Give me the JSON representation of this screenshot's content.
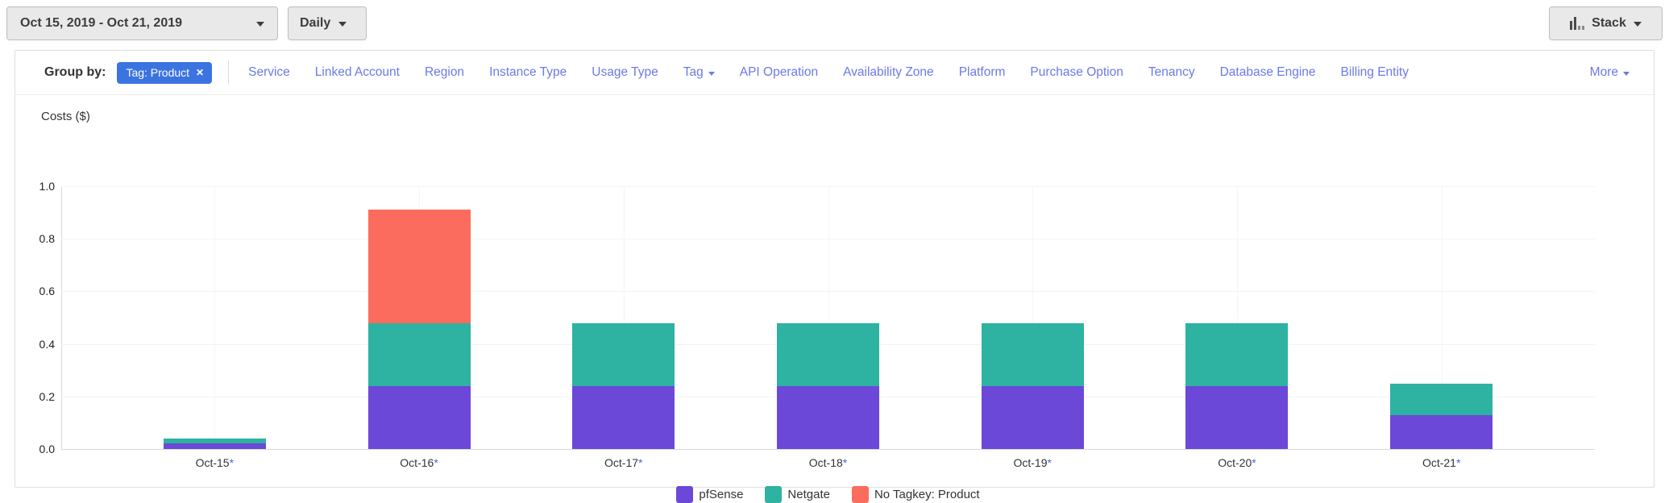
{
  "toolbar": {
    "date_range": "Oct 15, 2019 - Oct 21, 2019",
    "granularity": "Daily",
    "chart_style": "Stack"
  },
  "group_by": {
    "label": "Group by:",
    "active_filter": "Tag: Product",
    "links": [
      "Service",
      "Linked Account",
      "Region",
      "Instance Type",
      "Usage Type",
      "Tag",
      "API Operation",
      "Availability Zone",
      "Platform",
      "Purchase Option",
      "Tenancy",
      "Database Engine",
      "Billing Entity"
    ],
    "links_with_caret": [
      "Tag"
    ],
    "more_label": "More"
  },
  "chart_data": {
    "type": "bar",
    "stacked": true,
    "title": "Costs ($)",
    "categories": [
      "Oct-15*",
      "Oct-16*",
      "Oct-17*",
      "Oct-18*",
      "Oct-19*",
      "Oct-20*",
      "Oct-21*"
    ],
    "series": [
      {
        "name": "pfSense",
        "color": "#6b48d7",
        "values": [
          0.02,
          0.24,
          0.24,
          0.24,
          0.24,
          0.24,
          0.13
        ]
      },
      {
        "name": "Netgate",
        "color": "#2eb2a2",
        "values": [
          0.02,
          0.24,
          0.24,
          0.24,
          0.24,
          0.24,
          0.12
        ]
      },
      {
        "name": "No Tagkey: Product",
        "color": "#fb6c5e",
        "values": [
          0,
          0.43,
          0,
          0,
          0,
          0,
          0
        ]
      }
    ],
    "ylim": [
      0,
      1.0
    ],
    "yticks": [
      0.0,
      0.2,
      0.4,
      0.6,
      0.8,
      1.0
    ],
    "ytick_labels": [
      "0.0",
      "0.2",
      "0.4",
      "0.6",
      "0.8",
      "1.0"
    ],
    "grid": true,
    "legend_position": "bottom"
  },
  "colors": {
    "chip_blue": "#3b74e0",
    "link_blue": "#6b7ae6",
    "series_purple": "#6b48d7",
    "series_teal": "#2eb2a2",
    "series_salmon": "#fb6c5e"
  }
}
